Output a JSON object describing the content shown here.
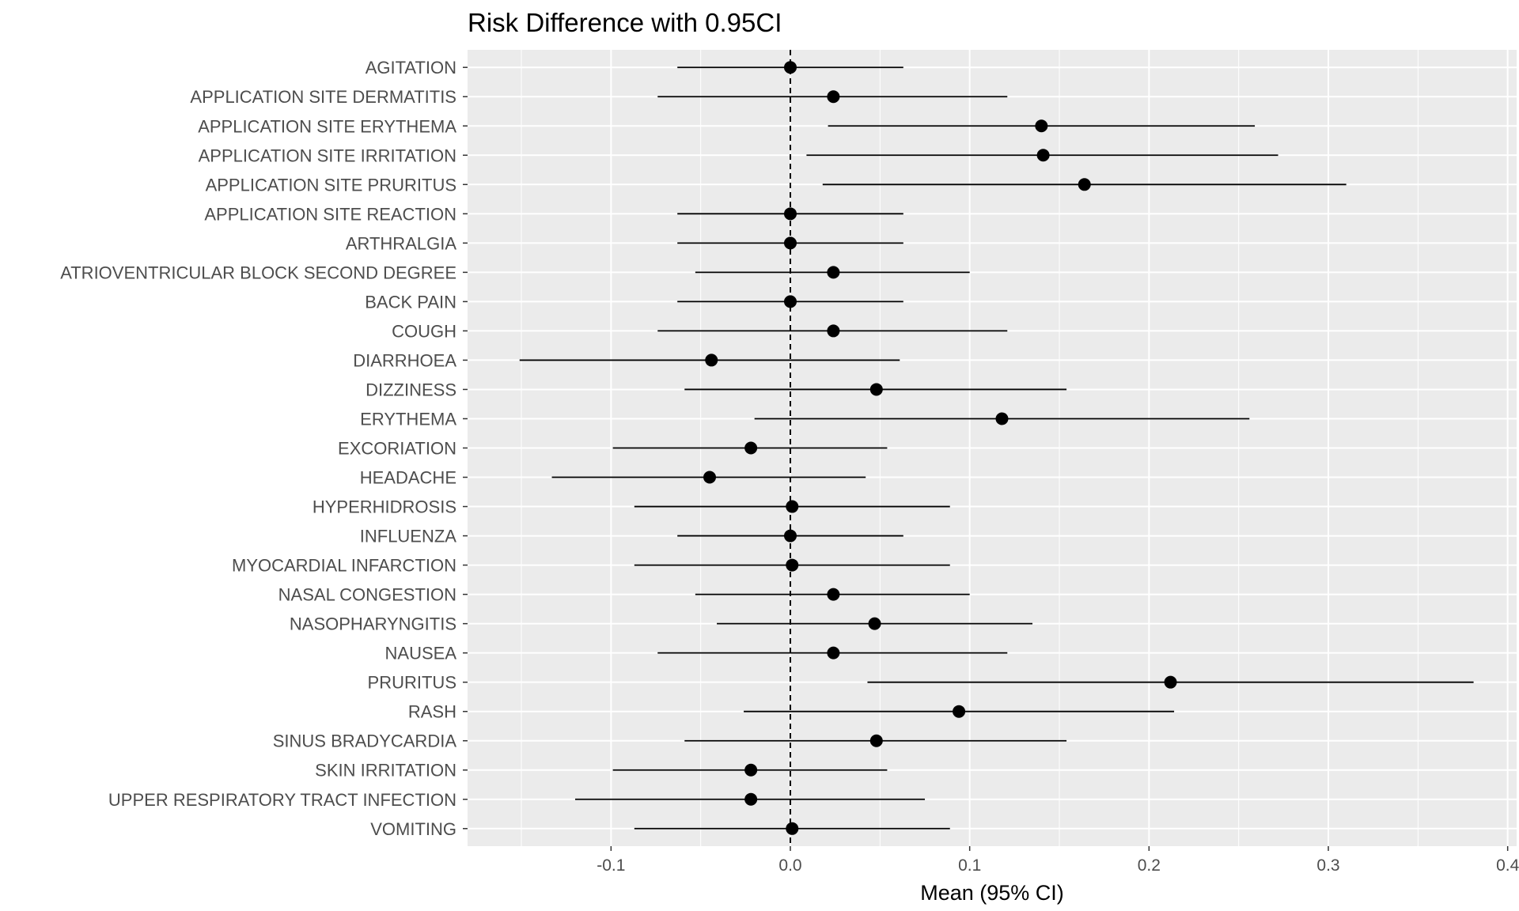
{
  "chart_data": {
    "type": "scatter",
    "subtype": "forest-plot",
    "title": "Risk Difference with 0.95CI",
    "xlabel": "Mean (95% CI)",
    "ylabel": "",
    "xlim": [
      -0.18,
      0.405
    ],
    "xticks": [
      -0.1,
      0.0,
      0.1,
      0.2,
      0.3,
      0.4
    ],
    "xtick_labels": [
      "-0.1",
      "0.0",
      "0.1",
      "0.2",
      "0.3",
      "0.4"
    ],
    "reference_line": 0.0,
    "grid": true,
    "background_color": "#ebebeb",
    "point_color": "#000000",
    "categories": [
      "AGITATION",
      "APPLICATION SITE DERMATITIS",
      "APPLICATION SITE ERYTHEMA",
      "APPLICATION SITE IRRITATION",
      "APPLICATION SITE PRURITUS",
      "APPLICATION SITE REACTION",
      "ARTHRALGIA",
      "ATRIOVENTRICULAR BLOCK SECOND DEGREE",
      "BACK PAIN",
      "COUGH",
      "DIARRHOEA",
      "DIZZINESS",
      "ERYTHEMA",
      "EXCORIATION",
      "HEADACHE",
      "HYPERHIDROSIS",
      "INFLUENZA",
      "MYOCARDIAL INFARCTION",
      "NASAL CONGESTION",
      "NASOPHARYNGITIS",
      "NAUSEA",
      "PRURITUS",
      "RASH",
      "SINUS BRADYCARDIA",
      "SKIN IRRITATION",
      "UPPER RESPIRATORY TRACT INFECTION",
      "VOMITING"
    ],
    "mean": [
      0.0,
      0.024,
      0.14,
      0.141,
      0.164,
      0.0,
      0.0,
      0.024,
      0.0,
      0.024,
      -0.044,
      0.048,
      0.118,
      -0.022,
      -0.045,
      0.001,
      0.0,
      0.001,
      0.024,
      0.047,
      0.024,
      0.212,
      0.094,
      0.048,
      -0.022,
      -0.022,
      0.001
    ],
    "lower": [
      -0.063,
      -0.074,
      0.021,
      0.009,
      0.018,
      -0.063,
      -0.063,
      -0.053,
      -0.063,
      -0.074,
      -0.151,
      -0.059,
      -0.02,
      -0.099,
      -0.133,
      -0.087,
      -0.063,
      -0.087,
      -0.053,
      -0.041,
      -0.074,
      0.043,
      -0.026,
      -0.059,
      -0.099,
      -0.12,
      -0.087
    ],
    "upper": [
      0.063,
      0.121,
      0.259,
      0.272,
      0.31,
      0.063,
      0.063,
      0.1,
      0.063,
      0.121,
      0.061,
      0.154,
      0.256,
      0.054,
      0.042,
      0.089,
      0.063,
      0.089,
      0.1,
      0.135,
      0.121,
      0.381,
      0.214,
      0.154,
      0.054,
      0.075,
      0.089
    ]
  }
}
